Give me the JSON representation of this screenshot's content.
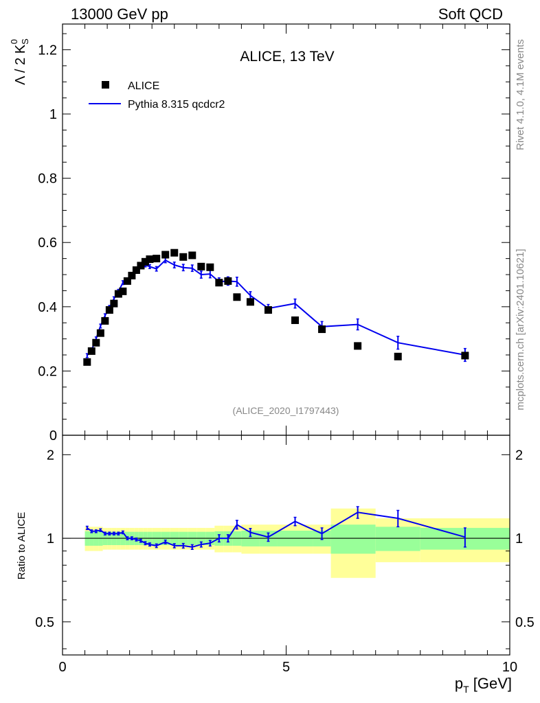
{
  "header": {
    "left": "13000 GeV pp",
    "right": "Soft QCD"
  },
  "side_labels": {
    "rivet": "Rivet 4.1.0,  4.1M events",
    "mcplots": "mcplots.cern.ch [arXiv:2401.10621]"
  },
  "chart_data": {
    "type": "scatter",
    "title": "ALICE, 13 TeV",
    "analysis_id": "(ALICE_2020_I1797443)",
    "xlabel": "p_T [GeV]",
    "ylabel": "Λ / 2 K_S^0",
    "xlim": [
      0,
      10
    ],
    "ylim": [
      0,
      1.28
    ],
    "xticks": [
      "0",
      "5",
      "10"
    ],
    "yticks": [
      "0",
      "0.2",
      "0.4",
      "0.6",
      "0.8",
      "1",
      "1.2"
    ],
    "legend": [
      "ALICE",
      "Pythia 8.315 qcdcr2"
    ],
    "legend_position": "top-left",
    "colors": {
      "data": "#000000",
      "mc": "#0000ee",
      "band_outer": "#ffff99",
      "band_inner": "#99ff99"
    },
    "data_series": {
      "name": "ALICE",
      "x": [
        0.55,
        0.65,
        0.75,
        0.85,
        0.95,
        1.05,
        1.15,
        1.25,
        1.35,
        1.45,
        1.55,
        1.65,
        1.75,
        1.85,
        1.95,
        2.1,
        2.3,
        2.5,
        2.7,
        2.9,
        3.1,
        3.3,
        3.5,
        3.7,
        3.9,
        4.2,
        4.6,
        5.2,
        5.8,
        6.6,
        7.5,
        9.0
      ],
      "y": [
        0.228,
        0.262,
        0.288,
        0.318,
        0.356,
        0.39,
        0.41,
        0.44,
        0.448,
        0.48,
        0.497,
        0.514,
        0.528,
        0.54,
        0.548,
        0.55,
        0.562,
        0.568,
        0.555,
        0.56,
        0.525,
        0.523,
        0.475,
        0.48,
        0.43,
        0.415,
        0.39,
        0.358,
        0.33,
        0.278,
        0.245,
        0.248
      ]
    },
    "mc_series": {
      "name": "Pythia 8.315 qcdcr2",
      "x": [
        0.55,
        0.65,
        0.75,
        0.85,
        0.95,
        1.05,
        1.15,
        1.25,
        1.35,
        1.45,
        1.55,
        1.65,
        1.75,
        1.85,
        1.95,
        2.1,
        2.3,
        2.5,
        2.7,
        2.9,
        3.1,
        3.3,
        3.5,
        3.7,
        3.9,
        4.2,
        4.6,
        5.2,
        5.8,
        6.6,
        7.5,
        9.0
      ],
      "y": [
        0.248,
        0.265,
        0.3,
        0.34,
        0.372,
        0.398,
        0.425,
        0.448,
        0.475,
        0.482,
        0.495,
        0.51,
        0.525,
        0.53,
        0.525,
        0.518,
        0.545,
        0.53,
        0.522,
        0.52,
        0.5,
        0.502,
        0.478,
        0.48,
        0.478,
        0.435,
        0.395,
        0.41,
        0.338,
        0.345,
        0.288,
        0.25
      ],
      "err": [
        0.006,
        0.006,
        0.006,
        0.006,
        0.006,
        0.006,
        0.006,
        0.006,
        0.006,
        0.006,
        0.006,
        0.006,
        0.006,
        0.006,
        0.006,
        0.007,
        0.008,
        0.009,
        0.01,
        0.01,
        0.011,
        0.012,
        0.012,
        0.013,
        0.014,
        0.012,
        0.012,
        0.014,
        0.016,
        0.017,
        0.02,
        0.02
      ]
    },
    "ratio": {
      "ylabel": "Ratio to ALICE",
      "ylim": [
        0.38,
        2.35
      ],
      "yticks": [
        "0.5",
        "1",
        "2"
      ],
      "bins": [
        [
          0.5,
          0.6
        ],
        [
          0.6,
          0.7
        ],
        [
          0.7,
          0.8
        ],
        [
          0.8,
          0.9
        ],
        [
          0.9,
          1.0
        ],
        [
          1.0,
          1.1
        ],
        [
          1.1,
          1.2
        ],
        [
          1.2,
          1.3
        ],
        [
          1.3,
          1.4
        ],
        [
          1.4,
          1.5
        ],
        [
          1.5,
          1.6
        ],
        [
          1.6,
          1.7
        ],
        [
          1.7,
          1.8
        ],
        [
          1.8,
          1.9
        ],
        [
          1.9,
          2.0
        ],
        [
          2.0,
          2.2
        ],
        [
          2.2,
          2.4
        ],
        [
          2.4,
          2.6
        ],
        [
          2.6,
          2.8
        ],
        [
          2.8,
          3.0
        ],
        [
          3.0,
          3.2
        ],
        [
          3.2,
          3.4
        ],
        [
          3.4,
          3.6
        ],
        [
          3.6,
          3.8
        ],
        [
          3.8,
          4.0
        ],
        [
          4.0,
          4.4
        ],
        [
          4.4,
          4.8
        ],
        [
          4.8,
          5.6
        ],
        [
          5.6,
          6.0
        ],
        [
          6.0,
          7.0
        ],
        [
          7.0,
          8.0
        ],
        [
          8.0,
          10.0
        ]
      ],
      "band_inner": [
        0.06,
        0.06,
        0.06,
        0.06,
        0.055,
        0.055,
        0.055,
        0.055,
        0.055,
        0.055,
        0.055,
        0.055,
        0.055,
        0.055,
        0.055,
        0.055,
        0.055,
        0.055,
        0.055,
        0.055,
        0.055,
        0.055,
        0.06,
        0.06,
        0.06,
        0.065,
        0.065,
        0.065,
        0.065,
        0.12,
        0.1,
        0.09
      ],
      "band_outer": [
        0.1,
        0.1,
        0.1,
        0.1,
        0.09,
        0.09,
        0.09,
        0.09,
        0.09,
        0.09,
        0.09,
        0.09,
        0.09,
        0.09,
        0.09,
        0.09,
        0.09,
        0.09,
        0.09,
        0.09,
        0.09,
        0.09,
        0.11,
        0.11,
        0.11,
        0.12,
        0.12,
        0.12,
        0.12,
        0.28,
        0.18,
        0.18
      ],
      "mc_ratio": [
        1.09,
        1.06,
        1.06,
        1.07,
        1.04,
        1.04,
        1.04,
        1.04,
        1.05,
        1.0,
        1.0,
        0.99,
        0.98,
        0.96,
        0.95,
        0.94,
        0.97,
        0.94,
        0.94,
        0.93,
        0.95,
        0.96,
        1.0,
        1.0,
        1.12,
        1.05,
        1.01,
        1.15,
        1.04,
        1.24,
        1.18,
        1.01
      ],
      "mc_ratio_err": [
        0.015,
        0.012,
        0.012,
        0.012,
        0.012,
        0.012,
        0.012,
        0.012,
        0.012,
        0.012,
        0.012,
        0.012,
        0.012,
        0.012,
        0.012,
        0.014,
        0.015,
        0.016,
        0.018,
        0.018,
        0.02,
        0.022,
        0.03,
        0.03,
        0.04,
        0.035,
        0.035,
        0.04,
        0.05,
        0.06,
        0.08,
        0.08
      ]
    }
  }
}
